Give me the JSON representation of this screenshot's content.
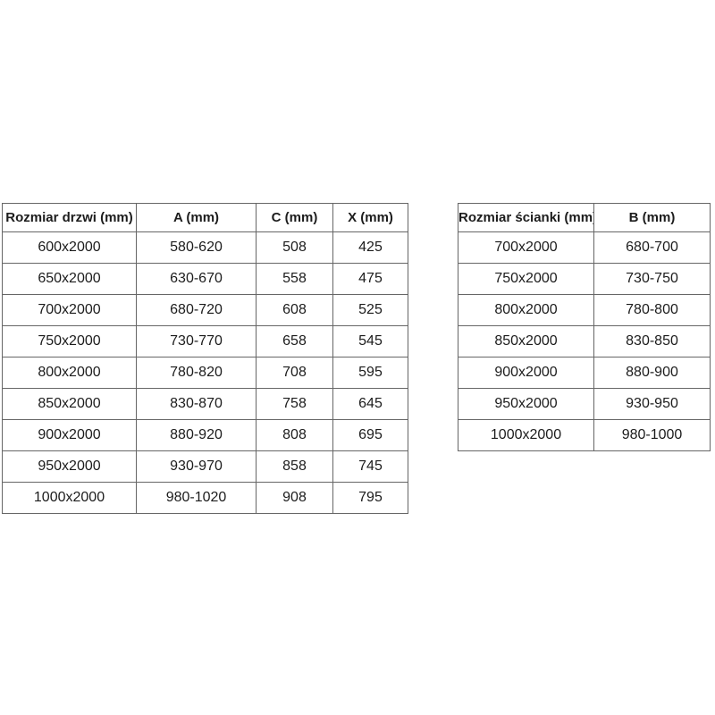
{
  "page": {
    "background": "#ffffff",
    "border_color": "#666666",
    "text_color": "#1c1c1c"
  },
  "tables": [
    {
      "name": "door-size-table",
      "columns": [
        "Rozmiar drzwi (mm)",
        "A (mm)",
        "C (mm)",
        "X (mm)"
      ],
      "rows": [
        [
          "600x2000",
          "580-620",
          "508",
          "425"
        ],
        [
          "650x2000",
          "630-670",
          "558",
          "475"
        ],
        [
          "700x2000",
          "680-720",
          "608",
          "525"
        ],
        [
          "750x2000",
          "730-770",
          "658",
          "545"
        ],
        [
          "800x2000",
          "780-820",
          "708",
          "595"
        ],
        [
          "850x2000",
          "830-870",
          "758",
          "645"
        ],
        [
          "900x2000",
          "880-920",
          "808",
          "695"
        ],
        [
          "950x2000",
          "930-970",
          "858",
          "745"
        ],
        [
          "1000x2000",
          "980-1020",
          "908",
          "795"
        ]
      ]
    },
    {
      "name": "wall-size-table",
      "columns": [
        "Rozmiar ścianki (mm)",
        "B (mm)"
      ],
      "rows": [
        [
          "700x2000",
          "680-700"
        ],
        [
          "750x2000",
          "730-750"
        ],
        [
          "800x2000",
          "780-800"
        ],
        [
          "850x2000",
          "830-850"
        ],
        [
          "900x2000",
          "880-900"
        ],
        [
          "950x2000",
          "930-950"
        ],
        [
          "1000x2000",
          "980-1000"
        ]
      ]
    }
  ]
}
